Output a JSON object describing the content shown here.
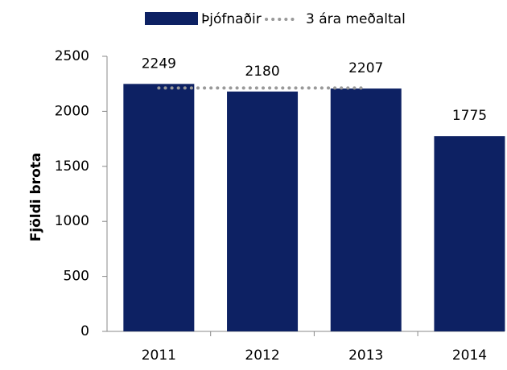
{
  "chart_data": {
    "type": "bar",
    "y_label": "Fjöldi brota",
    "categories": [
      "2011",
      "2012",
      "2013",
      "2014"
    ],
    "series": [
      {
        "name": "Þjófnaðir",
        "type": "bar",
        "color": "#0d2163",
        "values": [
          2249,
          2180,
          2207,
          1775
        ]
      },
      {
        "name": "3 ára meðaltal",
        "type": "line",
        "color": "#999999",
        "values": [
          2212,
          2212,
          2212,
          null
        ]
      }
    ],
    "ylim": [
      0,
      2500
    ],
    "yticks": [
      0,
      500,
      1000,
      1500,
      2000,
      2500
    ],
    "grid": false,
    "legend": "top"
  }
}
